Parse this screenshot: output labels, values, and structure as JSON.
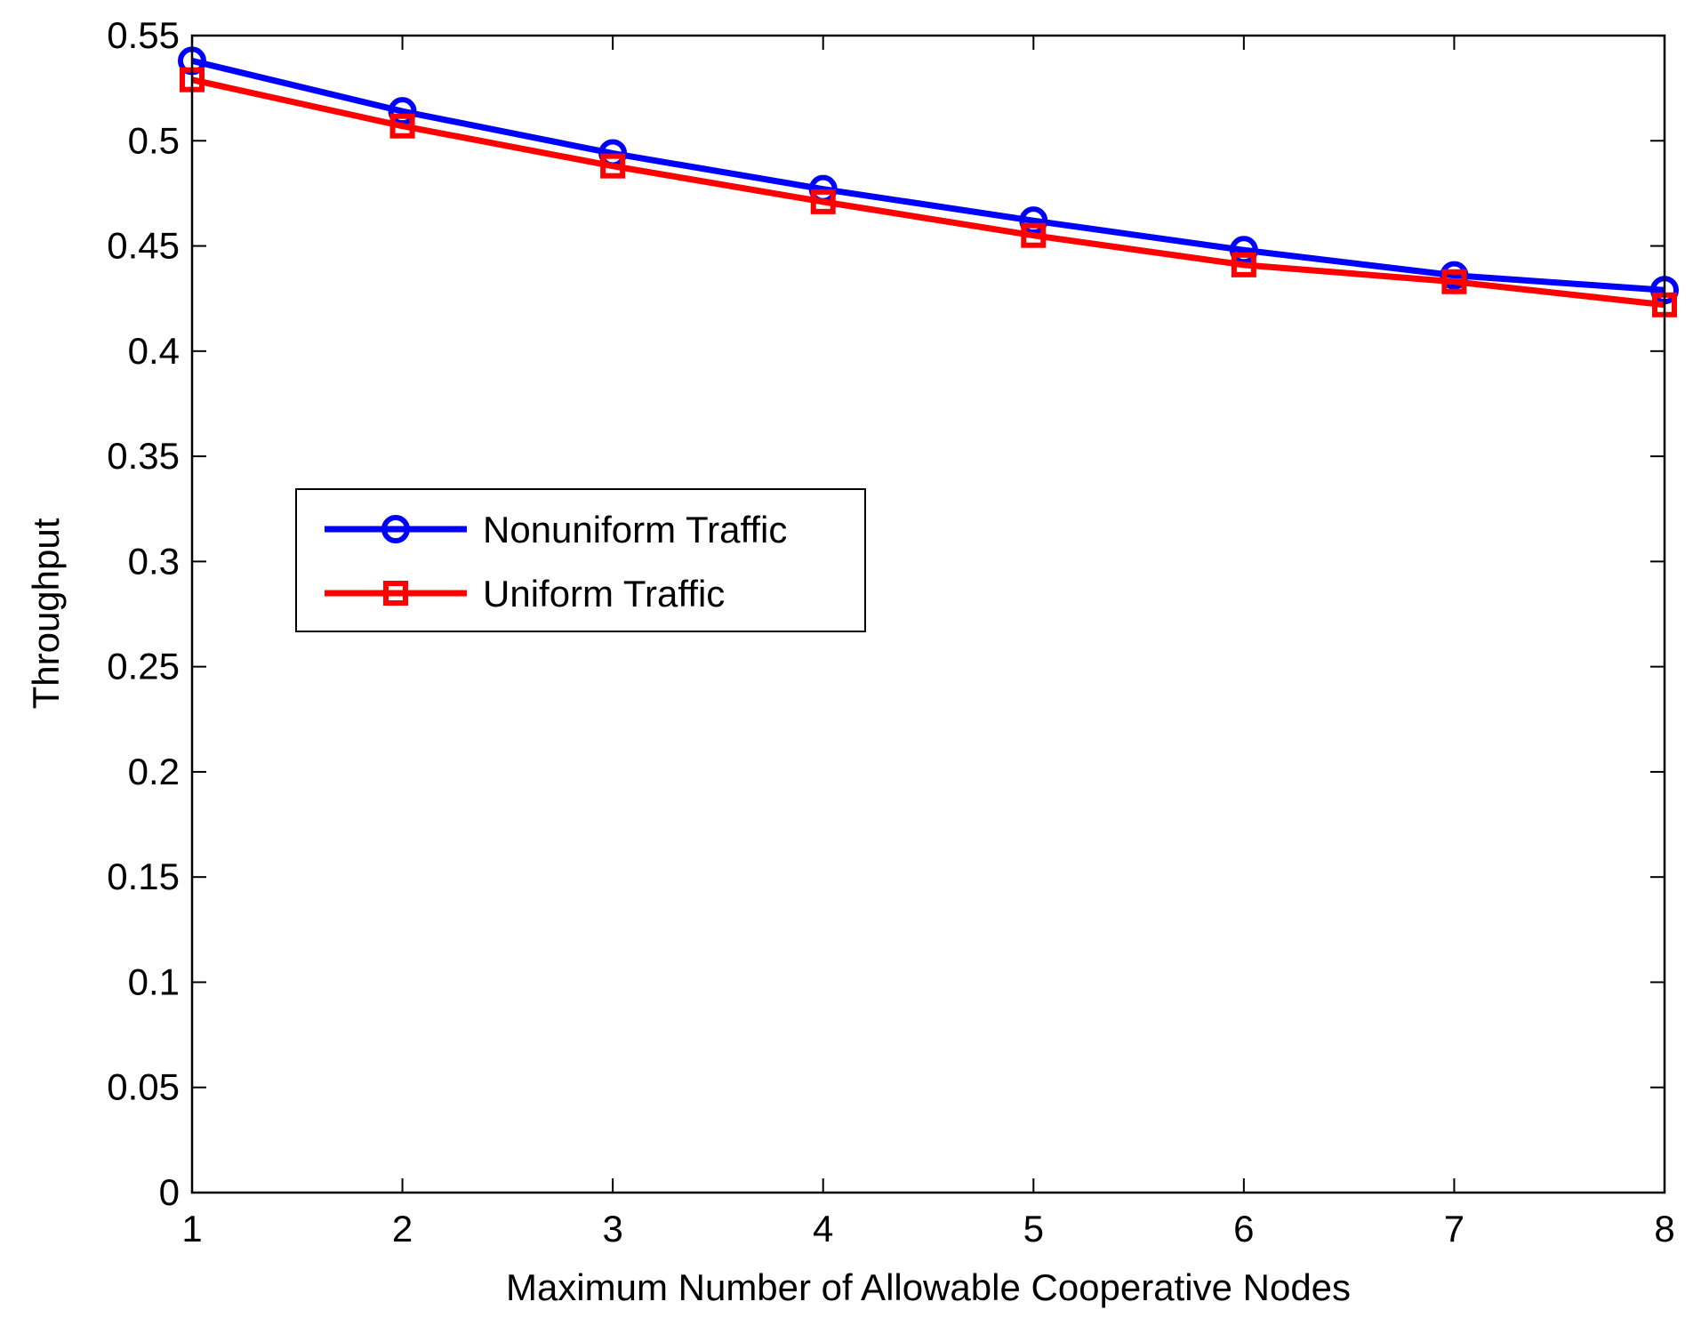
{
  "chart_data": {
    "type": "line",
    "xlabel": "Maximum Number of Allowable Cooperative Nodes",
    "ylabel": "Throughput",
    "xlim": [
      1,
      8
    ],
    "ylim": [
      0,
      0.55
    ],
    "xticks": [
      1,
      2,
      3,
      4,
      5,
      6,
      7,
      8
    ],
    "xtick_labels": [
      "1",
      "2",
      "3",
      "4",
      "5",
      "6",
      "7",
      "8"
    ],
    "yticks": [
      0,
      0.05,
      0.1,
      0.15,
      0.2,
      0.25,
      0.3,
      0.35,
      0.4,
      0.45,
      0.5,
      0.55
    ],
    "ytick_labels": [
      "0",
      "0.05",
      "0.1",
      "0.15",
      "0.2",
      "0.25",
      "0.3",
      "0.35",
      "0.4",
      "0.45",
      "0.5",
      "0.55"
    ],
    "grid": false,
    "legend_position": "center-left",
    "x": [
      1,
      2,
      3,
      4,
      5,
      6,
      7,
      8
    ],
    "series": [
      {
        "name": "Nonuniform Traffic",
        "color": "#0000ff",
        "marker": "circle",
        "values": [
          0.538,
          0.514,
          0.494,
          0.477,
          0.462,
          0.448,
          0.436,
          0.429
        ]
      },
      {
        "name": "Uniform Traffic",
        "color": "#ff0000",
        "marker": "square",
        "values": [
          0.529,
          0.507,
          0.488,
          0.471,
          0.455,
          0.441,
          0.433,
          0.422
        ]
      }
    ]
  }
}
